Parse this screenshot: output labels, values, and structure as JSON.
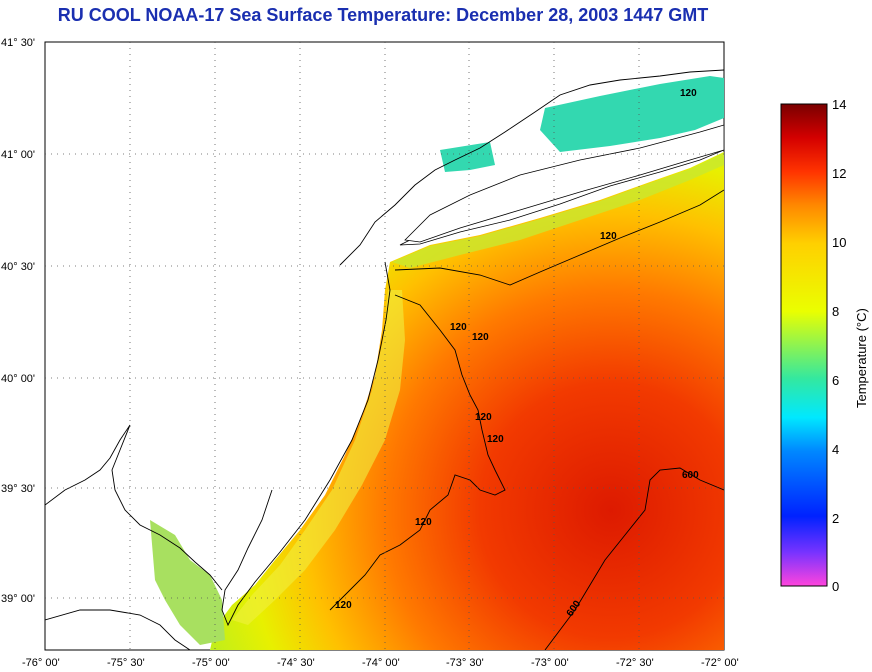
{
  "title": "RU COOL  NOAA-17  Sea Surface Temperature:  December 28, 2003 1447 GMT",
  "lat_labels": [
    "41° 30'",
    "41° 00'",
    "40° 30'",
    "40° 00'",
    "39° 30'",
    "39° 00'"
  ],
  "lon_labels": [
    "-76° 00'",
    "-75° 30'",
    "-75° 00'",
    "-74° 30'",
    "-74° 00'",
    "-73° 30'",
    "-73° 00'",
    "-72° 30'",
    "-72° 00'"
  ],
  "contour_labels": [
    "120",
    "120",
    "120",
    "120",
    "120",
    "120",
    "120",
    "120",
    "600",
    "600"
  ],
  "colorbar": {
    "label": "Temperature (°C)",
    "ticks": [
      "0",
      "2",
      "4",
      "6",
      "8",
      "10",
      "12",
      "14"
    ],
    "colors": {
      "c0": "#ff44dd",
      "c1": "#7733ff",
      "c2": "#0022ff",
      "c4": "#0088ff",
      "c5": "#00e8ff",
      "c6": "#33e8a0",
      "c8": "#eaff00",
      "c10": "#ffd000",
      "c11": "#ff8800",
      "c12": "#ff3300",
      "c13": "#d40000",
      "c14": "#7a0000"
    }
  },
  "legend_title": "Temperature (°C)"
}
